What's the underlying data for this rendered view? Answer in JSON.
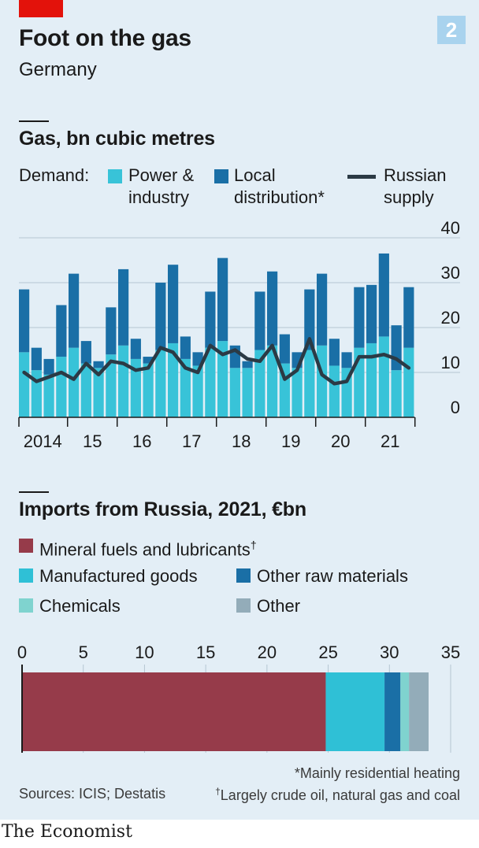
{
  "header": {
    "title": "Foot on the gas",
    "subtitle": "Germany",
    "chart_number": "2"
  },
  "gas_section": {
    "title": "Gas, bn cubic metres",
    "legend_prefix": "Demand:",
    "legend_power": "Power &\nindustry",
    "legend_local": "Local\ndistribution*",
    "legend_russian": "Russian\nsupply"
  },
  "imports_section": {
    "title": "Imports from Russia, 2021, €bn",
    "legend_mineral": "Mineral fuels and lubricants",
    "legend_mineral_mark": "†",
    "legend_manufactured": "Manufactured goods",
    "legend_other_raw": "Other raw materials",
    "legend_chemicals": "Chemicals",
    "legend_other": "Other"
  },
  "notes": {
    "footnote1": "*Mainly residential heating",
    "sources": "Sources: ICIS; Destatis",
    "footnote2_mark": "†",
    "footnote2": "Largely crude oil, natural gas and coal"
  },
  "footer": "The Economist",
  "colors": {
    "power_industry": "#38c3d8",
    "local_distribution": "#1a6fa6",
    "russian_supply": "#2b3a45",
    "mineral_fuels": "#963b4a",
    "manufactured_goods": "#2fc0d6",
    "other_raw_materials": "#1a6fa6",
    "chemicals": "#7fd3cf",
    "other": "#93acb9"
  },
  "chart_data": [
    {
      "type": "bar",
      "title": "Gas, bn cubic metres",
      "stacked": true,
      "ylim": [
        0,
        40
      ],
      "yticks": [
        0,
        10,
        20,
        30,
        40
      ],
      "y_axis_side": "right",
      "x_tick_labels": [
        "2014",
        "15",
        "16",
        "17",
        "18",
        "19",
        "20",
        "21"
      ],
      "quarters": [
        "2014 Q1",
        "2014 Q2",
        "2014 Q3",
        "2014 Q4",
        "2015 Q1",
        "2015 Q2",
        "2015 Q3",
        "2015 Q4",
        "2016 Q1",
        "2016 Q2",
        "2016 Q3",
        "2016 Q4",
        "2017 Q1",
        "2017 Q2",
        "2017 Q3",
        "2017 Q4",
        "2018 Q1",
        "2018 Q2",
        "2018 Q3",
        "2018 Q4",
        "2019 Q1",
        "2019 Q2",
        "2019 Q3",
        "2019 Q4",
        "2020 Q1",
        "2020 Q2",
        "2020 Q3",
        "2020 Q4",
        "2021 Q1",
        "2021 Q2",
        "2021 Q3",
        "2021 Q4"
      ],
      "series": [
        {
          "name": "Power & industry",
          "values": [
            14.5,
            10.5,
            9.5,
            13.5,
            15.5,
            12,
            11,
            14,
            16,
            13,
            12,
            15,
            16.5,
            13,
            11.5,
            15.5,
            17,
            11,
            11,
            15,
            16,
            12,
            11,
            15,
            16,
            11.5,
            11,
            15.5,
            16.5,
            18,
            10.5,
            15.5
          ]
        },
        {
          "name": "Local distribution*",
          "values": [
            14,
            5,
            3.5,
            11.5,
            16.5,
            5,
            1.5,
            10.5,
            17,
            4.5,
            1.5,
            15,
            17.5,
            5,
            3,
            12.5,
            18.5,
            5,
            1.5,
            13,
            16.5,
            6.5,
            3.5,
            13.5,
            16,
            6,
            3.5,
            13.5,
            13,
            18.5,
            10,
            13.5
          ]
        },
        {
          "name": "Russian supply",
          "type": "line",
          "values": [
            10,
            8,
            9,
            10,
            8.5,
            12,
            9.5,
            12.5,
            12,
            10.5,
            11,
            15.5,
            14.5,
            11,
            10,
            16,
            14,
            15,
            13,
            12.5,
            16,
            8.5,
            10.5,
            17.5,
            9.5,
            7.5,
            8,
            13.5,
            13.5,
            14,
            13,
            11
          ]
        }
      ]
    },
    {
      "type": "bar",
      "orientation": "horizontal",
      "stacked": true,
      "title": "Imports from Russia, 2021, €bn",
      "xlim": [
        0,
        35
      ],
      "xticks": [
        0,
        5,
        10,
        15,
        20,
        25,
        30,
        35
      ],
      "series": [
        {
          "name": "Mineral fuels and lubricants†",
          "value": 24.8
        },
        {
          "name": "Manufactured goods",
          "value": 4.8
        },
        {
          "name": "Other raw materials",
          "value": 1.3
        },
        {
          "name": "Chemicals",
          "value": 0.7
        },
        {
          "name": "Other",
          "value": 1.6
        }
      ]
    }
  ]
}
